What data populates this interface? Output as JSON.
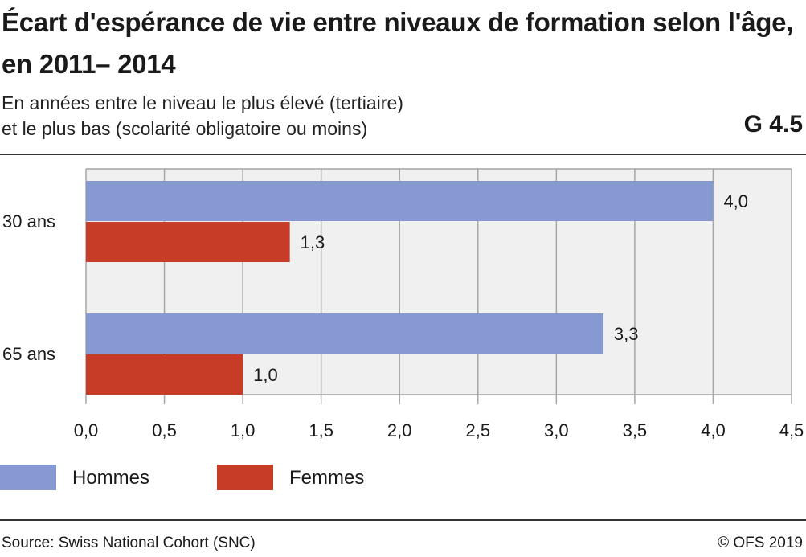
{
  "header": {
    "title": "Écart d'espérance de vie entre niveaux de formation selon l'âge, en 2011– 2014",
    "subtitle_line1": "En années entre le niveau le plus élevé (tertiaire)",
    "subtitle_line2": "et le plus bas (scolarité obligatoire ou moins)",
    "code": "G 4.5"
  },
  "footer": {
    "source": "Source: Swiss National Cohort (SNC)",
    "copyright": "© OFS 2019"
  },
  "colors": {
    "hommes": "#8799d1",
    "femmes": "#c63c26",
    "plot_background": "#f0f0f0",
    "grid": "#a6a6a6"
  },
  "chart_data": {
    "type": "bar",
    "orientation": "horizontal",
    "categories": [
      "30 ans",
      "65 ans"
    ],
    "series": [
      {
        "name": "Hommes",
        "values": [
          4.0,
          3.3
        ],
        "labels": [
          "4,0",
          "3,3"
        ]
      },
      {
        "name": "Femmes",
        "values": [
          1.3,
          1.0
        ],
        "labels": [
          "1,3",
          "1,0"
        ]
      }
    ],
    "xlim": [
      0,
      4.5
    ],
    "xticks": [
      0,
      0.5,
      1.0,
      1.5,
      2.0,
      2.5,
      3.0,
      3.5,
      4.0,
      4.5
    ],
    "xtick_labels": [
      "0,0",
      "0,5",
      "1,0",
      "1,5",
      "2,0",
      "2,5",
      "3,0",
      "3,5",
      "4,0",
      "4,5"
    ],
    "grid": true,
    "legend_position": "bottom-left"
  }
}
